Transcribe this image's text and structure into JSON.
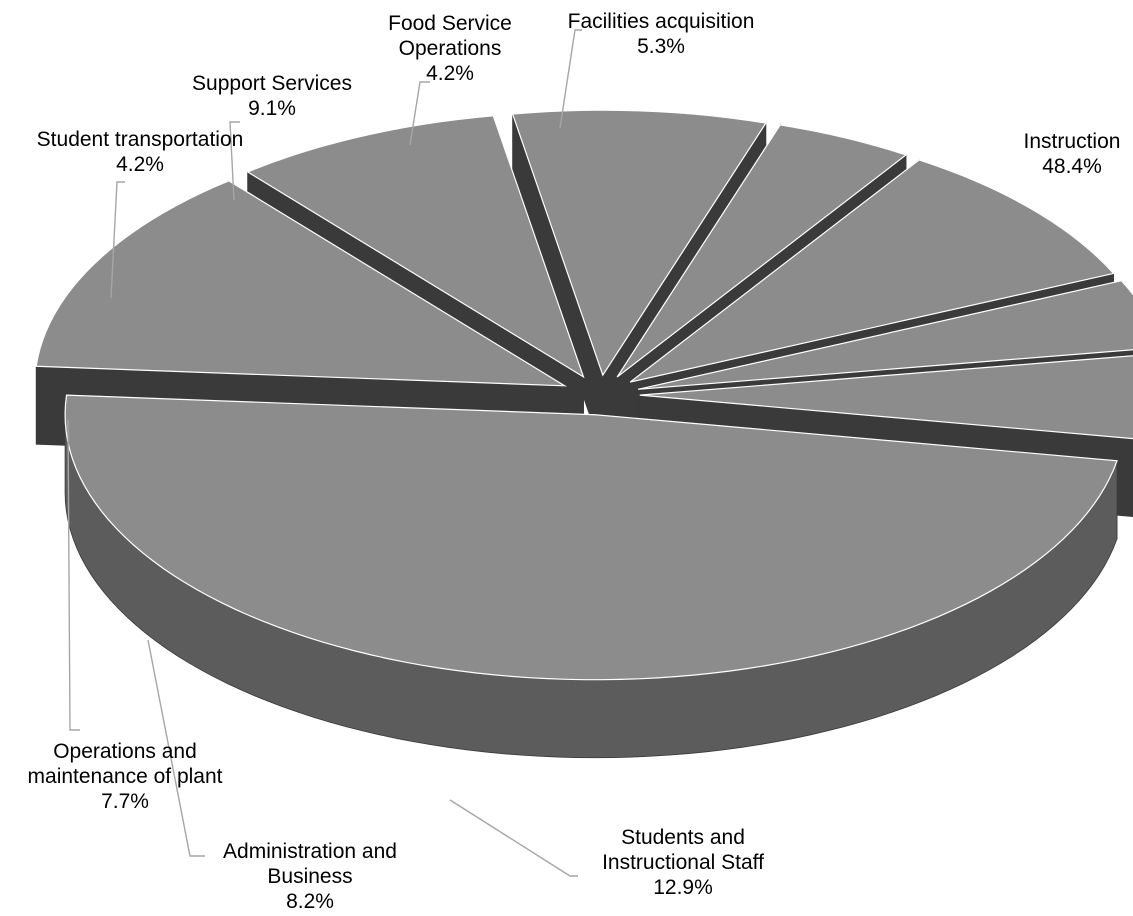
{
  "chart_data": {
    "type": "pie",
    "style": "3d-exploded",
    "legend": "none",
    "slices": [
      {
        "label_lines": [
          "Instruction"
        ],
        "value": 48.4,
        "value_label": "48.4%"
      },
      {
        "label_lines": [
          "Students and",
          "Instructional Staff"
        ],
        "value": 12.9,
        "value_label": "12.9%"
      },
      {
        "label_lines": [
          "Administration and",
          "Business"
        ],
        "value": 8.2,
        "value_label": "8.2%"
      },
      {
        "label_lines": [
          "Operations and",
          "maintenance of plant"
        ],
        "value": 7.7,
        "value_label": "7.7%"
      },
      {
        "label_lines": [
          "Student transportation"
        ],
        "value": 4.2,
        "value_label": "4.2%"
      },
      {
        "label_lines": [
          "Support Services"
        ],
        "value": 9.1,
        "value_label": "9.1%"
      },
      {
        "label_lines": [
          "Food Service",
          "Operations"
        ],
        "value": 4.2,
        "value_label": "4.2%"
      },
      {
        "label_lines": [
          "Facilities acquisition"
        ],
        "value": 5.3,
        "value_label": "5.3%"
      }
    ],
    "colors": {
      "top": "#8c8c8c",
      "side": "#5c5c5c",
      "dark": "#3a3a3a",
      "edge": "#ffffff"
    }
  }
}
